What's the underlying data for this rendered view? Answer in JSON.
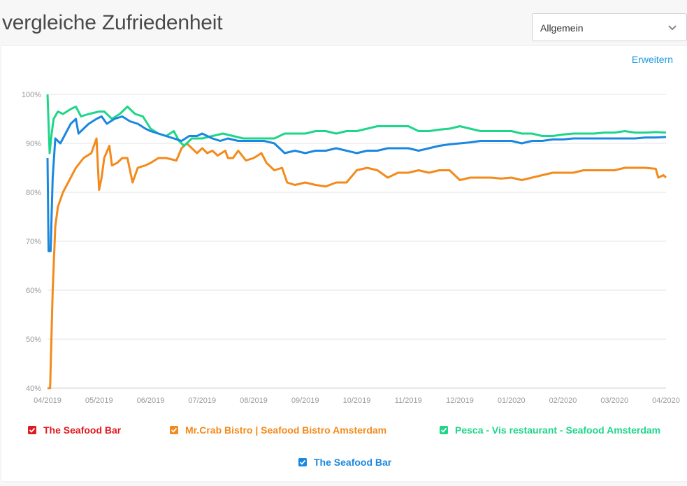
{
  "header": {
    "title": "vergleiche Zufriedenheit"
  },
  "dropdown": {
    "selected": "Allgemein"
  },
  "expand_label": "Erweitern",
  "colors": {
    "red": "#e0191f",
    "orange": "#f38a1b",
    "green": "#1ed68a",
    "blue": "#1a87e0"
  },
  "legend": [
    {
      "label": "The Seafood Bar",
      "color": "#e0191f",
      "checked": true
    },
    {
      "label": "Mr.Crab Bistro | Seafood Bistro Amsterdam",
      "color": "#f38a1b",
      "checked": true
    },
    {
      "label": "Pesca - Vis restaurant - Seafood Amsterdam",
      "color": "#1ed68a",
      "checked": true
    },
    {
      "label": "The Seafood Bar",
      "color": "#1a87e0",
      "checked": true
    }
  ],
  "chart_data": {
    "type": "line",
    "x_tick_labels": [
      "04/2019",
      "05/2019",
      "06/2019",
      "07/2019",
      "08/2019",
      "09/2019",
      "10/2019",
      "11/2019",
      "12/2019",
      "01/2020",
      "02/2020",
      "03/2020",
      "04/2020"
    ],
    "y_tick_labels": [
      "40%",
      "50%",
      "60%",
      "70%",
      "80%",
      "90%",
      "100%"
    ],
    "ylim": [
      40,
      100
    ],
    "x_unit": "months since 04/2019",
    "xlim": [
      0,
      12
    ],
    "grid": true,
    "legend_position": "bottom",
    "series": [
      {
        "name": "Mr.Crab Bistro | Seafood Bistro Amsterdam",
        "color": "#f38a1b",
        "points": [
          [
            0,
            40
          ],
          [
            0.05,
            40
          ],
          [
            0.1,
            60
          ],
          [
            0.15,
            73
          ],
          [
            0.2,
            77
          ],
          [
            0.3,
            80
          ],
          [
            0.4,
            82
          ],
          [
            0.55,
            85
          ],
          [
            0.7,
            87
          ],
          [
            0.85,
            88
          ],
          [
            0.95,
            91
          ],
          [
            1.0,
            80.5
          ],
          [
            1.05,
            83
          ],
          [
            1.1,
            87
          ],
          [
            1.2,
            89.5
          ],
          [
            1.25,
            85.5
          ],
          [
            1.35,
            86
          ],
          [
            1.45,
            87
          ],
          [
            1.55,
            87
          ],
          [
            1.65,
            82
          ],
          [
            1.75,
            85
          ],
          [
            1.9,
            85.5
          ],
          [
            2.0,
            86
          ],
          [
            2.15,
            87
          ],
          [
            2.3,
            87
          ],
          [
            2.5,
            86.5
          ],
          [
            2.6,
            89
          ],
          [
            2.7,
            90
          ],
          [
            2.8,
            89
          ],
          [
            2.9,
            88
          ],
          [
            3.0,
            89
          ],
          [
            3.1,
            88
          ],
          [
            3.2,
            88.5
          ],
          [
            3.3,
            87.5
          ],
          [
            3.45,
            88.5
          ],
          [
            3.5,
            87
          ],
          [
            3.6,
            87
          ],
          [
            3.7,
            88.5
          ],
          [
            3.85,
            86.5
          ],
          [
            4.0,
            87
          ],
          [
            4.15,
            88
          ],
          [
            4.25,
            86
          ],
          [
            4.4,
            84.5
          ],
          [
            4.55,
            85
          ],
          [
            4.65,
            82
          ],
          [
            4.8,
            81.5
          ],
          [
            5.0,
            82
          ],
          [
            5.2,
            81.5
          ],
          [
            5.4,
            81.2
          ],
          [
            5.6,
            82
          ],
          [
            5.8,
            82
          ],
          [
            6.0,
            84.5
          ],
          [
            6.2,
            85
          ],
          [
            6.4,
            84.5
          ],
          [
            6.6,
            83
          ],
          [
            6.8,
            84
          ],
          [
            7.0,
            84
          ],
          [
            7.2,
            84.5
          ],
          [
            7.4,
            84
          ],
          [
            7.6,
            84.5
          ],
          [
            7.8,
            84.5
          ],
          [
            8.0,
            82.5
          ],
          [
            8.2,
            83
          ],
          [
            8.4,
            83
          ],
          [
            8.6,
            83
          ],
          [
            8.8,
            82.8
          ],
          [
            9.0,
            83
          ],
          [
            9.2,
            82.5
          ],
          [
            9.4,
            83
          ],
          [
            9.6,
            83.5
          ],
          [
            9.8,
            84
          ],
          [
            10.0,
            84
          ],
          [
            10.2,
            84
          ],
          [
            10.4,
            84.5
          ],
          [
            10.6,
            84.5
          ],
          [
            10.8,
            84.5
          ],
          [
            11.0,
            84.5
          ],
          [
            11.2,
            85
          ],
          [
            11.4,
            85
          ],
          [
            11.6,
            85
          ],
          [
            11.8,
            84.8
          ],
          [
            11.85,
            83
          ],
          [
            11.95,
            83.5
          ],
          [
            12.0,
            83
          ]
        ]
      },
      {
        "name": "Pesca - Vis restaurant - Seafood Amsterdam",
        "color": "#1ed68a",
        "points": [
          [
            0,
            100
          ],
          [
            0.04,
            88
          ],
          [
            0.08,
            92
          ],
          [
            0.12,
            95
          ],
          [
            0.2,
            96.5
          ],
          [
            0.3,
            96
          ],
          [
            0.45,
            97
          ],
          [
            0.55,
            97.5
          ],
          [
            0.65,
            95.5
          ],
          [
            0.8,
            96
          ],
          [
            1.0,
            96.5
          ],
          [
            1.1,
            96.5
          ],
          [
            1.25,
            95
          ],
          [
            1.4,
            96
          ],
          [
            1.55,
            97.5
          ],
          [
            1.7,
            96
          ],
          [
            1.85,
            95.5
          ],
          [
            2.0,
            93
          ],
          [
            2.15,
            92
          ],
          [
            2.3,
            91.5
          ],
          [
            2.45,
            92.5
          ],
          [
            2.55,
            90.5
          ],
          [
            2.65,
            89.5
          ],
          [
            2.8,
            91
          ],
          [
            3.0,
            91
          ],
          [
            3.2,
            91.5
          ],
          [
            3.4,
            92
          ],
          [
            3.6,
            91.5
          ],
          [
            3.8,
            91
          ],
          [
            4.0,
            91
          ],
          [
            4.2,
            91
          ],
          [
            4.4,
            91
          ],
          [
            4.6,
            92
          ],
          [
            4.8,
            92
          ],
          [
            5.0,
            92
          ],
          [
            5.2,
            92.5
          ],
          [
            5.4,
            92.5
          ],
          [
            5.6,
            92
          ],
          [
            5.8,
            92.5
          ],
          [
            6.0,
            92.5
          ],
          [
            6.2,
            93
          ],
          [
            6.4,
            93.5
          ],
          [
            6.6,
            93.5
          ],
          [
            6.8,
            93.5
          ],
          [
            7.0,
            93.5
          ],
          [
            7.2,
            92.5
          ],
          [
            7.4,
            92.5
          ],
          [
            7.6,
            92.8
          ],
          [
            7.8,
            93
          ],
          [
            8.0,
            93.5
          ],
          [
            8.2,
            93
          ],
          [
            8.4,
            92.5
          ],
          [
            8.6,
            92.5
          ],
          [
            8.8,
            92.5
          ],
          [
            9.0,
            92.5
          ],
          [
            9.2,
            92
          ],
          [
            9.4,
            92
          ],
          [
            9.6,
            91.5
          ],
          [
            9.8,
            91.5
          ],
          [
            10.0,
            91.8
          ],
          [
            10.2,
            92
          ],
          [
            10.4,
            92
          ],
          [
            10.6,
            92
          ],
          [
            10.8,
            92.2
          ],
          [
            11.0,
            92.2
          ],
          [
            11.2,
            92.5
          ],
          [
            11.4,
            92.2
          ],
          [
            11.6,
            92.2
          ],
          [
            11.8,
            92.3
          ],
          [
            12.0,
            92.2
          ]
        ]
      },
      {
        "name": "The Seafood Bar",
        "color": "#1a87e0",
        "points": [
          [
            0,
            87
          ],
          [
            0.02,
            68
          ],
          [
            0.06,
            68
          ],
          [
            0.1,
            83
          ],
          [
            0.15,
            91
          ],
          [
            0.25,
            90
          ],
          [
            0.35,
            92
          ],
          [
            0.45,
            94
          ],
          [
            0.55,
            95
          ],
          [
            0.6,
            92
          ],
          [
            0.7,
            93
          ],
          [
            0.8,
            94
          ],
          [
            0.95,
            95
          ],
          [
            1.05,
            95.5
          ],
          [
            1.15,
            94
          ],
          [
            1.3,
            95
          ],
          [
            1.45,
            95.5
          ],
          [
            1.6,
            94.5
          ],
          [
            1.75,
            94
          ],
          [
            1.9,
            93
          ],
          [
            2.0,
            92.5
          ],
          [
            2.15,
            92
          ],
          [
            2.3,
            91.5
          ],
          [
            2.45,
            91
          ],
          [
            2.6,
            90.5
          ],
          [
            2.75,
            91.5
          ],
          [
            2.9,
            91.5
          ],
          [
            3.0,
            92
          ],
          [
            3.1,
            91.5
          ],
          [
            3.2,
            91
          ],
          [
            3.35,
            90.5
          ],
          [
            3.5,
            91
          ],
          [
            3.7,
            90.5
          ],
          [
            3.9,
            90.5
          ],
          [
            4.0,
            90.5
          ],
          [
            4.2,
            90.5
          ],
          [
            4.4,
            90
          ],
          [
            4.6,
            88
          ],
          [
            4.8,
            88.5
          ],
          [
            5.0,
            88
          ],
          [
            5.2,
            88.5
          ],
          [
            5.4,
            88.5
          ],
          [
            5.6,
            89
          ],
          [
            5.8,
            88.5
          ],
          [
            6.0,
            88
          ],
          [
            6.2,
            88.5
          ],
          [
            6.4,
            88.5
          ],
          [
            6.6,
            89
          ],
          [
            6.8,
            89
          ],
          [
            7.0,
            89
          ],
          [
            7.2,
            88.5
          ],
          [
            7.4,
            89
          ],
          [
            7.6,
            89.5
          ],
          [
            7.8,
            89.8
          ],
          [
            8.0,
            90
          ],
          [
            8.2,
            90.2
          ],
          [
            8.4,
            90.5
          ],
          [
            8.6,
            90.5
          ],
          [
            8.8,
            90.5
          ],
          [
            9.0,
            90.5
          ],
          [
            9.2,
            90
          ],
          [
            9.4,
            90.5
          ],
          [
            9.6,
            90.5
          ],
          [
            9.8,
            90.8
          ],
          [
            10.0,
            90.8
          ],
          [
            10.2,
            91
          ],
          [
            10.4,
            91
          ],
          [
            10.6,
            91
          ],
          [
            10.8,
            91
          ],
          [
            11.0,
            91
          ],
          [
            11.2,
            91
          ],
          [
            11.4,
            91
          ],
          [
            11.6,
            91.2
          ],
          [
            11.8,
            91.2
          ],
          [
            12.0,
            91.3
          ]
        ]
      }
    ]
  }
}
